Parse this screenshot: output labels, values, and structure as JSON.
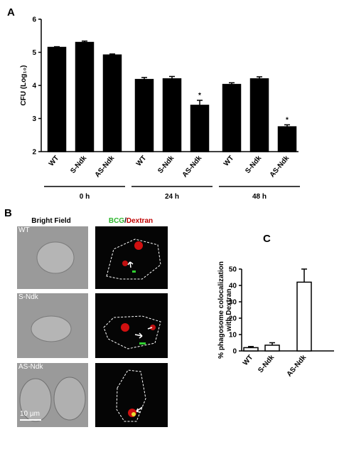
{
  "chart_data": [
    {
      "type": "bar",
      "panel": "A",
      "y_label": "CFU (Log₁₀)",
      "categories": [
        "WT",
        "S-Ndk",
        "AS-Ndk"
      ],
      "series": [
        {
          "name": "0 h",
          "color": "#000000",
          "values": [
            5.15,
            5.3,
            4.92
          ],
          "errors": [
            0.02,
            0.04,
            0.03
          ],
          "significance": [
            null,
            null,
            null
          ]
        },
        {
          "name": "24 h",
          "color": "#000000",
          "values": [
            4.18,
            4.2,
            3.4
          ],
          "errors": [
            0.06,
            0.07,
            0.15
          ],
          "significance": [
            null,
            null,
            "*"
          ]
        },
        {
          "name": "48 h",
          "color": "#000000",
          "values": [
            4.03,
            4.2,
            2.75
          ],
          "errors": [
            0.05,
            0.06,
            0.06
          ],
          "significance": [
            null,
            null,
            "*"
          ]
        }
      ],
      "ylim": [
        2,
        6
      ],
      "yticks": [
        2,
        3,
        4,
        5,
        6
      ]
    },
    {
      "type": "bar",
      "panel": "C",
      "y_label": [
        "% phagosome colocalization",
        "with Dextran"
      ],
      "categories": [
        "WT",
        "S-Ndk",
        "AS-Ndk"
      ],
      "series": [
        {
          "color": "#ffffff",
          "values": [
            2,
            3.5,
            42
          ],
          "errors": [
            0.7,
            1.5,
            8
          ]
        }
      ],
      "ylim": [
        0,
        50
      ],
      "yticks": [
        0,
        10,
        20,
        30,
        40,
        50
      ]
    }
  ],
  "panel_b": {
    "panel": "B",
    "left_title": "Bright Field",
    "right_title_1": "BCG",
    "right_title_sep": "/",
    "right_title_2": "Dextran",
    "row_labels": [
      "WT",
      "S-Ndk",
      "AS-Ndk"
    ],
    "scale_bar": "10 µm"
  }
}
